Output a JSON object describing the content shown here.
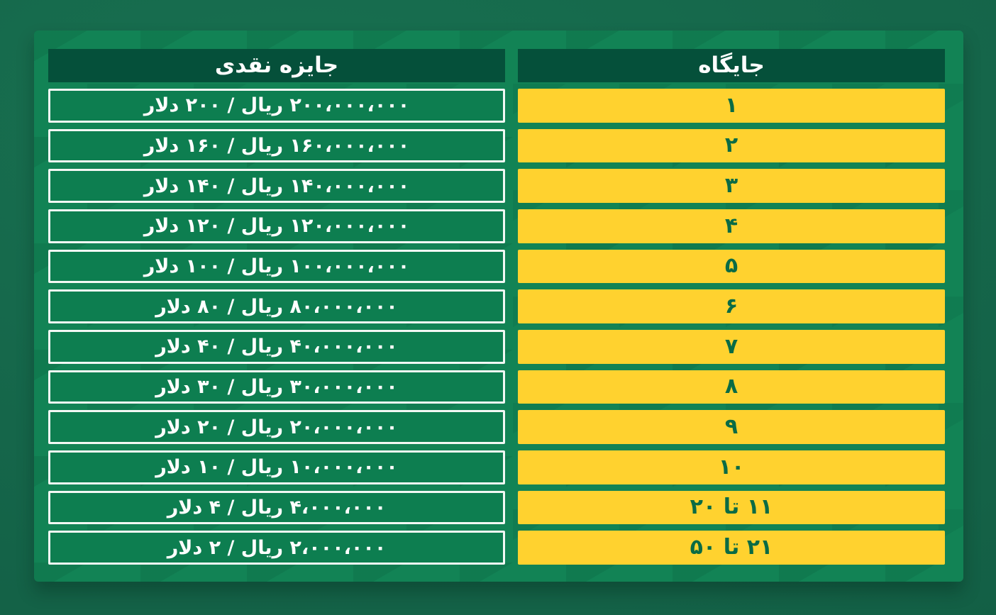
{
  "chart_data": {
    "type": "table",
    "title": "",
    "columns": [
      "جایگاه",
      "جایزه نقدی"
    ],
    "rows": [
      {
        "rank": "۱",
        "prize": "۲۰۰،۰۰۰،۰۰۰ ریال / ۲۰۰ دلار"
      },
      {
        "rank": "۲",
        "prize": "۱۶۰،۰۰۰،۰۰۰ ریال / ۱۶۰ دلار"
      },
      {
        "rank": "۳",
        "prize": "۱۴۰،۰۰۰،۰۰۰ ریال / ۱۴۰ دلار"
      },
      {
        "rank": "۴",
        "prize": "۱۲۰،۰۰۰،۰۰۰ ریال / ۱۲۰ دلار"
      },
      {
        "rank": "۵",
        "prize": "۱۰۰،۰۰۰،۰۰۰ ریال / ۱۰۰ دلار"
      },
      {
        "rank": "۶",
        "prize": "۸۰،۰۰۰،۰۰۰ ریال / ۸۰ دلار"
      },
      {
        "rank": "۷",
        "prize": "۴۰،۰۰۰،۰۰۰ ریال / ۴۰ دلار"
      },
      {
        "rank": "۸",
        "prize": "۳۰،۰۰۰،۰۰۰ ریال / ۳۰ دلار"
      },
      {
        "rank": "۹",
        "prize": "۲۰،۰۰۰،۰۰۰ ریال / ۲۰ دلار"
      },
      {
        "rank": "۱۰",
        "prize": "۱۰،۰۰۰،۰۰۰ ریال / ۱۰ دلار"
      },
      {
        "rank": "۱۱ تا ۲۰",
        "prize": "۴،۰۰۰،۰۰۰ ریال / ۴ دلار"
      },
      {
        "rank": "۲۱ تا ۵۰",
        "prize": "۲،۰۰۰،۰۰۰ ریال / ۲ دلار"
      }
    ],
    "ranks_latin": [
      "1",
      "2",
      "3",
      "4",
      "5",
      "6",
      "7",
      "8",
      "9",
      "10",
      "11-20",
      "21-50"
    ],
    "prize_rial": [
      200000000,
      160000000,
      140000000,
      120000000,
      100000000,
      80000000,
      40000000,
      30000000,
      20000000,
      10000000,
      4000000,
      2000000
    ],
    "prize_usd": [
      200,
      160,
      140,
      120,
      100,
      80,
      40,
      30,
      20,
      10,
      4,
      2
    ],
    "legend_position": "none",
    "grid": false
  },
  "colors": {
    "page_background": "#15664A",
    "card_background": "#128355",
    "header_cell_background": "#05503A",
    "header_text": "#FFFFFF",
    "rank_cell_background": "#FFD22F",
    "rank_text": "#0A6B45",
    "prize_cell_background": "#0D7E50",
    "prize_cell_border": "#F2F8F4",
    "prize_text": "#FFFFFF"
  }
}
